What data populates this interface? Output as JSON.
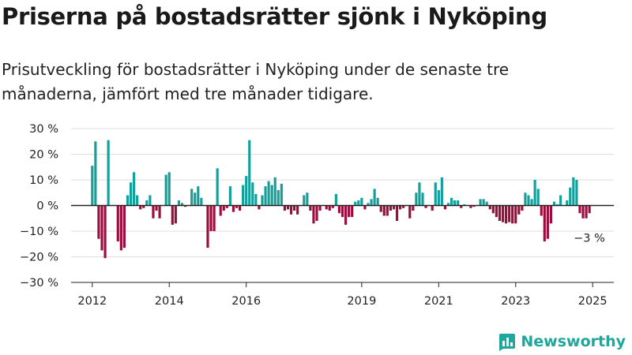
{
  "header": {
    "title": "Priserna på bostadsrätter sjönk i Nyköping",
    "subtitle": "Prisutveckling för bostadsrätter i Nyköping under de senaste tre månaderna, jämfört med tre månader tidigare."
  },
  "brand": {
    "name": "Newsworthy",
    "color": "#1fa79b"
  },
  "colors": {
    "positive": "#13a09a",
    "negative": "#9c0d3e",
    "grid": "#dddddd",
    "zero": "#222222"
  },
  "chart_data": {
    "type": "bar",
    "unit": "%",
    "ylim": [
      -30,
      30
    ],
    "yticks": [
      30,
      20,
      10,
      0,
      -10,
      -20,
      -30
    ],
    "ytick_labels": [
      "30 %",
      "20 %",
      "10 %",
      "0 %",
      "−10 %",
      "−20 %",
      "−30 %"
    ],
    "xlim": [
      2011.45,
      2025.55
    ],
    "xticks": [
      2012,
      2014,
      2016,
      2019,
      2021,
      2023,
      2025
    ],
    "xtick_labels": [
      "2012",
      "2014",
      "2016",
      "2019",
      "2021",
      "2023",
      "2025"
    ],
    "grid": true,
    "legend": "none",
    "start": "2012-01",
    "interval": "month",
    "values": [
      15.5,
      25,
      -13,
      -17.5,
      -20.5,
      25.5,
      0,
      0,
      -14,
      -17.5,
      -16.5,
      4,
      9,
      13,
      4,
      -1.5,
      -1,
      2,
      4,
      -5,
      -2,
      -5,
      0,
      12,
      13,
      -7.5,
      -7,
      2,
      1,
      -0.5,
      0,
      6.5,
      5,
      7.5,
      3,
      0,
      -16.5,
      -10,
      -10,
      14.5,
      -4,
      -2,
      -1,
      7.5,
      -2.5,
      -1,
      -2,
      8,
      11.5,
      25.5,
      9,
      4.5,
      -1.5,
      4,
      7.5,
      9.5,
      8,
      11,
      6,
      8.5,
      -2,
      -1.5,
      -3.5,
      -2,
      -3.5,
      0,
      4,
      5,
      -2,
      -7,
      -6,
      -2,
      0,
      -1.5,
      -2,
      -1,
      4.5,
      -3,
      -4.5,
      -7.5,
      -4.5,
      -4.5,
      1.5,
      2,
      3,
      -1.5,
      1,
      2.5,
      6.5,
      3,
      -2.5,
      -4,
      -4,
      -2,
      -1.5,
      -6,
      -1.5,
      -1,
      0,
      -5,
      -2,
      5,
      9,
      5,
      -1,
      0,
      -2,
      9,
      6,
      11,
      -1.5,
      1,
      3,
      2,
      2,
      -1,
      0.5,
      0,
      -1,
      -0.5,
      0,
      2.5,
      2.5,
      1.5,
      -1.5,
      -3,
      -4.5,
      -6,
      -6.5,
      -7,
      -6.5,
      -7,
      -7,
      -3.5,
      -2,
      5,
      4,
      2.5,
      10,
      6.5,
      -4,
      -14,
      -13,
      -7,
      1.5,
      0.5,
      4,
      0,
      2,
      7,
      11,
      10,
      -3,
      -5,
      -5,
      -3
    ],
    "annotation": {
      "label": "−3 %",
      "value": -3
    }
  }
}
